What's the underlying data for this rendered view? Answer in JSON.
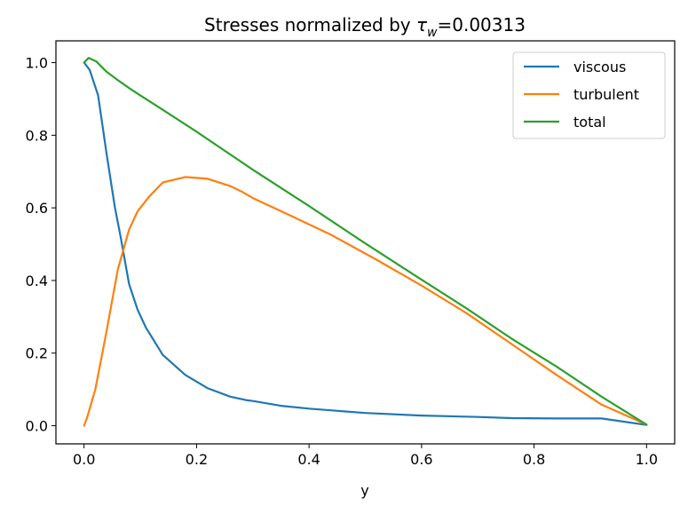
{
  "chart_data": {
    "type": "line",
    "title": "Stresses normalized by τw=0.00313",
    "title_parts": {
      "prefix": "Stresses normalized by ",
      "symbol": "τ",
      "subscript": "w",
      "suffix": "=0.00313"
    },
    "xlabel": "y",
    "ylabel": "",
    "xlim": [
      -0.05,
      1.05
    ],
    "ylim": [
      -0.05,
      1.06
    ],
    "x_ticks": [
      "0.0",
      "0.2",
      "0.4",
      "0.6",
      "0.8",
      "1.0"
    ],
    "y_ticks": [
      "0.0",
      "0.2",
      "0.4",
      "0.6",
      "0.8",
      "1.0"
    ],
    "grid": false,
    "legend_position": "top-right",
    "series": [
      {
        "name": "viscous",
        "color": "#1f77b4",
        "x": [
          0.0,
          0.01,
          0.025,
          0.04,
          0.055,
          0.065,
          0.08,
          0.095,
          0.11,
          0.14,
          0.18,
          0.22,
          0.26,
          0.29,
          0.3,
          0.35,
          0.4,
          0.5,
          0.6,
          0.7,
          0.76,
          0.84,
          0.92,
          1.0
        ],
        "values": [
          1.0,
          0.98,
          0.91,
          0.75,
          0.6,
          0.52,
          0.39,
          0.32,
          0.27,
          0.195,
          0.14,
          0.103,
          0.08,
          0.07,
          0.068,
          0.055,
          0.047,
          0.035,
          0.028,
          0.024,
          0.021,
          0.02,
          0.02,
          0.002
        ]
      },
      {
        "name": "turbulent",
        "color": "#ff7f0e",
        "x": [
          0.0,
          0.005,
          0.02,
          0.04,
          0.06,
          0.08,
          0.095,
          0.115,
          0.14,
          0.18,
          0.22,
          0.26,
          0.28,
          0.3,
          0.36,
          0.44,
          0.52,
          0.6,
          0.68,
          0.76,
          0.84,
          0.92,
          1.0
        ],
        "values": [
          0.0,
          0.02,
          0.1,
          0.26,
          0.43,
          0.54,
          0.59,
          0.63,
          0.67,
          0.685,
          0.68,
          0.66,
          0.645,
          0.627,
          0.584,
          0.525,
          0.457,
          0.386,
          0.31,
          0.225,
          0.14,
          0.058,
          0.003
        ]
      },
      {
        "name": "total",
        "color": "#2ca02c",
        "x": [
          0.0,
          0.008,
          0.022,
          0.04,
          0.06,
          0.08,
          0.1,
          0.14,
          0.2,
          0.3,
          0.4,
          0.5,
          0.6,
          0.68,
          0.76,
          0.84,
          0.92,
          1.0
        ],
        "values": [
          1.0,
          1.013,
          1.003,
          0.975,
          0.952,
          0.93,
          0.91,
          0.87,
          0.81,
          0.705,
          0.605,
          0.502,
          0.402,
          0.323,
          0.24,
          0.163,
          0.08,
          0.003
        ]
      }
    ]
  }
}
